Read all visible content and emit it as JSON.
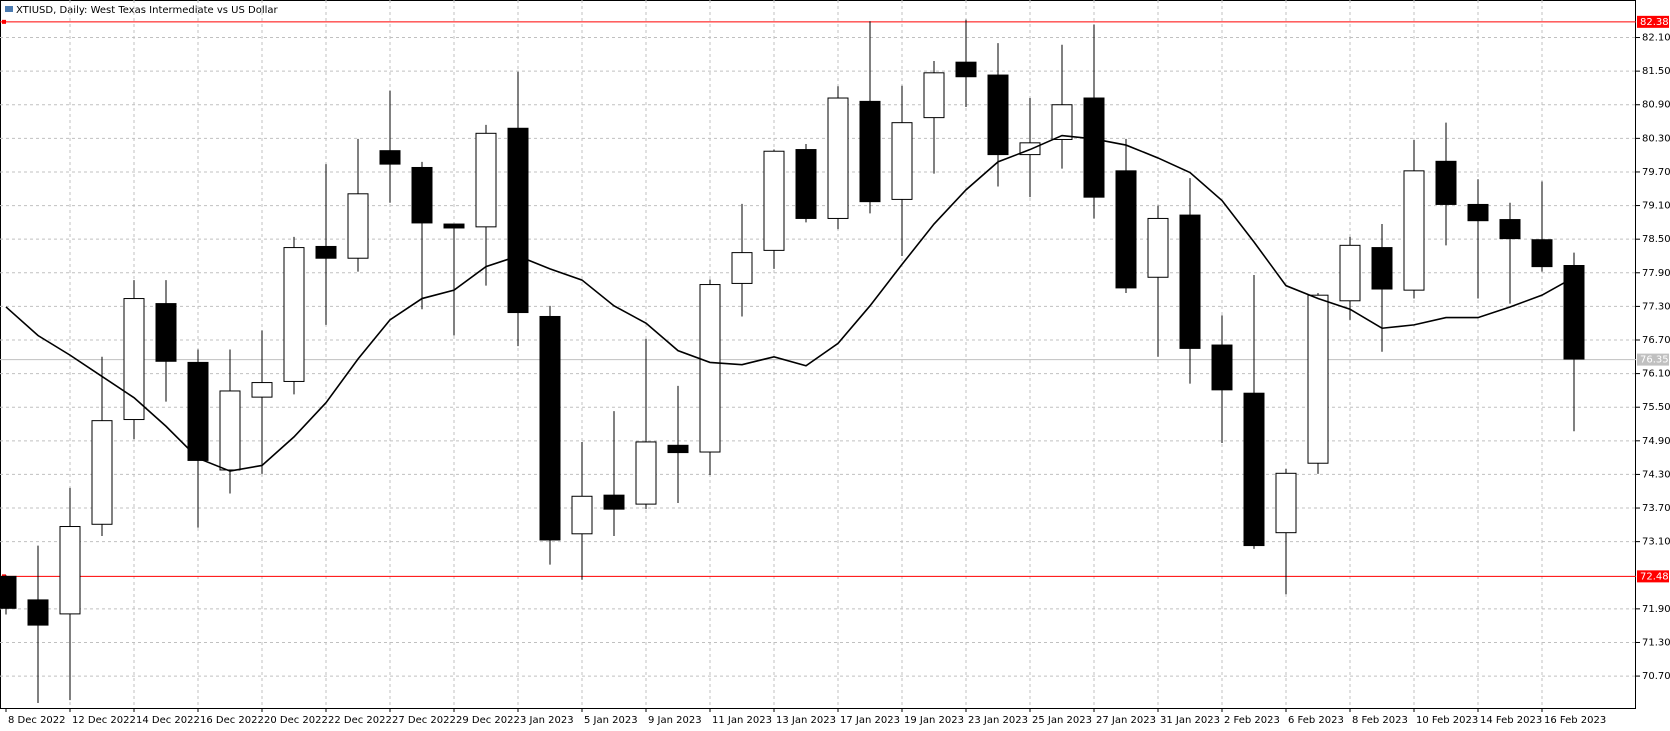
{
  "chart_data": {
    "type": "candlestick",
    "title": "XTIUSD, Daily:  West Texas Intermediate vs US Dollar",
    "categories": [
      "8 Dec 2022",
      null,
      "12 Dec 2022",
      null,
      "14 Dec 2022",
      null,
      "16 Dec 2022",
      null,
      "20 Dec 2022",
      null,
      "22 Dec 2022",
      null,
      "27 Dec 2022",
      null,
      "29 Dec 2022",
      null,
      "3 Jan 2023",
      null,
      "5 Jan 2023",
      null,
      "9 Jan 2023",
      null,
      "11 Jan 2023",
      null,
      "13 Jan 2023",
      null,
      "17 Jan 2023",
      null,
      "19 Jan 2023",
      null,
      "23 Jan 2023",
      null,
      "25 Jan 2023",
      null,
      "27 Jan 2023",
      null,
      "31 Jan 2023",
      null,
      "2 Feb 2023",
      null,
      "6 Feb 2023",
      null,
      "8 Feb 2023",
      null,
      "10 Feb 2023",
      null,
      "14 Feb 2023",
      null,
      "16 Feb 2023",
      null
    ],
    "open": [
      72.48,
      72.06,
      71.81,
      73.41,
      75.28,
      77.35,
      76.3,
      74.38,
      75.68,
      75.96,
      78.37,
      78.16,
      80.08,
      79.78,
      78.77,
      78.72,
      80.48,
      77.12,
      73.24,
      73.93,
      73.77,
      74.82,
      74.7,
      77.71,
      78.3,
      80.1,
      78.87,
      80.96,
      79.21,
      80.67,
      81.66,
      81.43,
      80.01,
      80.28,
      81.02,
      79.72,
      77.82,
      78.93,
      76.61,
      75.75,
      73.26,
      74.5,
      77.4,
      78.35,
      77.59,
      79.89,
      79.12,
      78.85,
      78.49,
      78.03
    ],
    "high": [
      72.5,
      73.03,
      74.06,
      76.4,
      77.77,
      77.77,
      76.53,
      76.53,
      76.87,
      78.54,
      79.84,
      80.29,
      81.15,
      79.88,
      78.77,
      80.54,
      81.49,
      77.31,
      74.88,
      75.43,
      76.72,
      75.88,
      77.78,
      79.13,
      80.1,
      80.2,
      81.23,
      82.39,
      81.24,
      81.68,
      82.42,
      82.0,
      81.02,
      81.97,
      82.33,
      80.29,
      79.1,
      79.59,
      77.14,
      77.86,
      74.4,
      77.54,
      78.54,
      78.77,
      80.27,
      80.58,
      79.57,
      79.15,
      79.53,
      78.26
    ],
    "low": [
      71.8,
      70.22,
      70.27,
      73.2,
      74.93,
      75.6,
      73.35,
      73.96,
      74.31,
      75.73,
      76.97,
      77.92,
      79.15,
      77.25,
      76.78,
      77.67,
      76.59,
      72.69,
      72.42,
      73.2,
      73.68,
      73.79,
      74.29,
      77.12,
      77.97,
      78.8,
      78.68,
      78.96,
      78.2,
      79.67,
      80.86,
      79.44,
      79.25,
      79.76,
      78.87,
      77.54,
      76.4,
      75.92,
      74.86,
      72.97,
      72.16,
      74.31,
      77.06,
      76.49,
      77.44,
      78.39,
      77.44,
      77.35,
      77.92,
      75.07
    ],
    "close": [
      71.91,
      71.61,
      73.37,
      75.26,
      77.44,
      76.32,
      74.55,
      75.79,
      75.94,
      78.35,
      78.16,
      79.31,
      79.84,
      78.79,
      78.7,
      80.39,
      77.19,
      73.13,
      73.91,
      73.68,
      74.88,
      74.69,
      77.69,
      78.26,
      80.07,
      78.87,
      81.02,
      79.17,
      80.58,
      81.47,
      81.4,
      80.01,
      80.22,
      80.9,
      79.25,
      77.63,
      78.87,
      76.55,
      75.81,
      73.03,
      74.32,
      77.5,
      78.39,
      77.61,
      79.72,
      79.12,
      78.83,
      78.51,
      78.01,
      76.36
    ],
    "ma": [
      77.29,
      76.78,
      76.43,
      76.05,
      75.67,
      75.16,
      74.59,
      74.36,
      74.46,
      74.97,
      75.58,
      76.36,
      77.06,
      77.44,
      77.59,
      78.01,
      78.2,
      77.97,
      77.77,
      77.31,
      77.0,
      76.51,
      76.3,
      76.26,
      76.4,
      76.24,
      76.64,
      77.31,
      78.05,
      78.77,
      79.38,
      79.88,
      80.1,
      80.35,
      80.29,
      80.18,
      79.95,
      79.69,
      79.19,
      78.45,
      77.67,
      77.44,
      77.25,
      76.91,
      76.97,
      77.1,
      77.1,
      77.29,
      77.5,
      77.82
    ],
    "up_color": "#ffffff",
    "down_color": "#000000",
    "ma_color": "#000000",
    "levels": [
      82.38,
      72.48
    ],
    "level_color": "#ff0000",
    "current_price": 76.35,
    "ylim": [
      70.13,
      82.77
    ],
    "yticks": [
      {
        "value": 82.1,
        "label": "82.10"
      },
      {
        "value": 81.5,
        "label": "81.50"
      },
      {
        "value": 80.9,
        "label": "80.90"
      },
      {
        "value": 80.3,
        "label": "80.30"
      },
      {
        "value": 79.7,
        "label": "79.70"
      },
      {
        "value": 79.1,
        "label": "79.10"
      },
      {
        "value": 78.5,
        "label": "78.50"
      },
      {
        "value": 77.9,
        "label": "77.90"
      },
      {
        "value": 77.3,
        "label": "77.30"
      },
      {
        "value": 76.7,
        "label": "76.70"
      },
      {
        "value": 76.1,
        "label": "76.10"
      },
      {
        "value": 75.5,
        "label": "75.50"
      },
      {
        "value": 74.9,
        "label": "74.90"
      },
      {
        "value": 74.3,
        "label": "74.30"
      },
      {
        "value": 73.7,
        "label": "73.70"
      },
      {
        "value": 73.1,
        "label": "73.10"
      },
      {
        "value": 71.9,
        "label": "71.90"
      },
      {
        "value": 71.3,
        "label": "71.30"
      },
      {
        "value": 70.7,
        "label": "70.70"
      }
    ],
    "grid": true
  }
}
